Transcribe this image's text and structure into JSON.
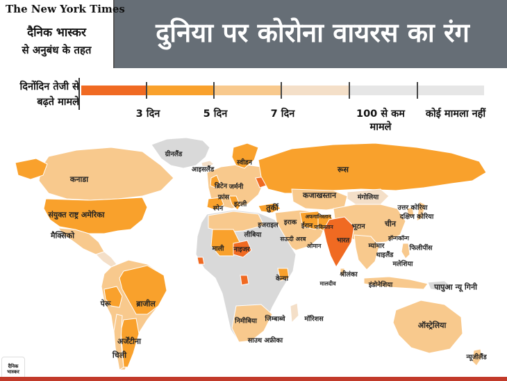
{
  "header": {
    "nyt_logo": "The New York Times",
    "partner_line1": "दैनिक भास्कर",
    "partner_line2": "से अनुबंध के तहत",
    "headline": "दुनिया पर कोरोना वायरस का रंग"
  },
  "legend": {
    "title": "दिनोंदिन तेजी से बढ़ते मामले",
    "scale": [
      {
        "label": "3 दिन",
        "color": "#f06a22"
      },
      {
        "label": "5 दिन",
        "color": "#f9a12c"
      },
      {
        "label": "7 दिन",
        "color": "#f8c98d"
      },
      {
        "label": "100 से कम मामले",
        "color": "#f4dfc8"
      },
      {
        "label": "कोई मामला नहीं",
        "color": "#e6e6e6"
      }
    ]
  },
  "colors": {
    "rapid_3": "#f06a22",
    "rapid_5": "#f9a12c",
    "rapid_7": "#f8c98d",
    "under_100": "#f4dfc8",
    "no_cases": "#d9d9d9",
    "header_bg": "#666e76"
  },
  "countries": {
    "greenland": "ग्रीनलैंड",
    "iceland": "आइसलैंड",
    "sweden": "स्वीडन",
    "russia": "रूस",
    "canada": "कनाडा",
    "britain": "ब्रिटेन",
    "germany": "जर्मनी",
    "france": "फ्रांस",
    "spain": "स्पेन",
    "italy": "इटली",
    "turkey": "तुर्की",
    "kazakhstan": "कजाखस्तान",
    "mongolia": "मंगोलिया",
    "north_korea": "उत्तर कोरिया",
    "south_korea": "दक्षिण कोरिया",
    "usa": "संयुक्त राष्ट्र अमेरिका",
    "mexico": "मैक्सिको",
    "israel": "इजराइल",
    "libya": "लीबिया",
    "iraq": "इराक",
    "afghanistan": "अफगानिस्तान",
    "iran": "ईरान",
    "pakistan": "पाकिस्तान",
    "bhutan": "भूटान",
    "china": "चीन",
    "hong_kong": "हॉन्गकॉन्ग",
    "philippines": "फिलीपींस",
    "saudi_arabia": "सऊदी अरब",
    "oman": "ओमान",
    "india": "भारत",
    "myanmar": "म्यांमार",
    "thailand": "थाइलैंड",
    "mali": "माली",
    "niger": "नाइजर",
    "malaysia": "मलेशिया",
    "sri_lanka": "श्रीलंका",
    "maldives": "मालदीव",
    "indonesia": "इंडोनेशिया",
    "kenya": "केन्या",
    "papua_new_guinea": "पापुआ न्यू गिनी",
    "peru": "पेरू",
    "brazil": "ब्राजील",
    "namibia": "निमीबिया",
    "zimbabwe": "जिम्बाब्वे",
    "mauritius": "मॉरिशस",
    "australia": "ऑस्ट्रेलिया",
    "south_africa": "साउथ अफ्रीका",
    "argentina": "अर्जेंटीना",
    "chile": "चिली",
    "new_zealand": "न्यूजीलैंड"
  },
  "logo_text": "दैनिक भास्कर"
}
